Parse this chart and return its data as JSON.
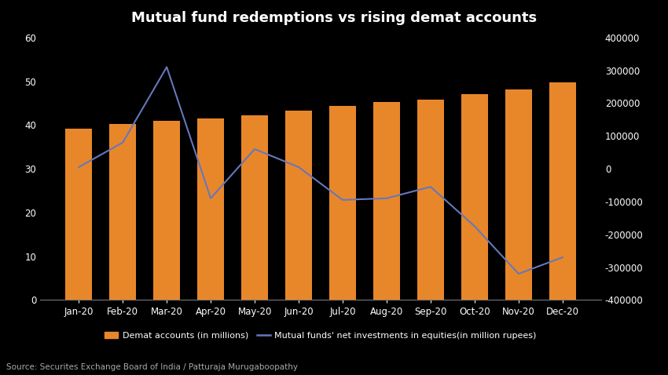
{
  "title": "Mutual fund redemptions vs rising demat accounts",
  "background_color": "#000000",
  "text_color": "#ffffff",
  "categories": [
    "Jan-20",
    "Feb-20",
    "Mar-20",
    "Apr-20",
    "May-20",
    "Jun-20",
    "Jul-20",
    "Aug-20",
    "Sep-20",
    "Oct-20",
    "Nov-20",
    "Dec-20"
  ],
  "demat_accounts": [
    39.2,
    40.2,
    40.9,
    41.5,
    42.3,
    43.2,
    44.4,
    45.2,
    45.8,
    47.0,
    48.1,
    49.7
  ],
  "mf_investments": [
    5000,
    80000,
    310000,
    -90000,
    60000,
    5000,
    -95000,
    -90000,
    -55000,
    -175000,
    -320000,
    -270000
  ],
  "bar_color": "#e8872a",
  "line_color": "#6677bb",
  "left_ylim": [
    0,
    60
  ],
  "right_ylim": [
    -400000,
    400000
  ],
  "left_yticks": [
    0,
    10,
    20,
    30,
    40,
    50,
    60
  ],
  "right_yticks": [
    -400000,
    -300000,
    -200000,
    -100000,
    0,
    100000,
    200000,
    300000,
    400000
  ],
  "legend_bar_label": "Demat accounts (in millions)",
  "legend_line_label": "Mutual funds' net investments in equities(in million rupees)",
  "source_text": "Source: Securites Exchange Board of India / Patturaja Murugaboopathy",
  "title_fontsize": 13,
  "axis_fontsize": 8.5,
  "legend_fontsize": 8,
  "source_fontsize": 7.5
}
